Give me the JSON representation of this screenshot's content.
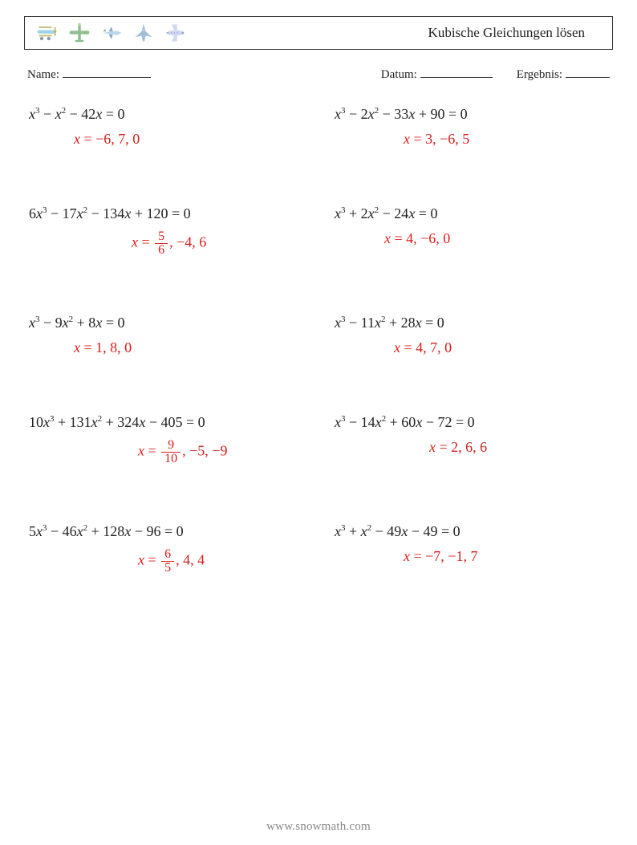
{
  "header": {
    "title": "Kubische Gleichungen lösen",
    "icon_colors": {
      "plane1_body": "#9fd3e8",
      "plane1_prop": "#bdb76b",
      "plane2_body": "#8fbf8f",
      "plane2_nose": "#b0d898",
      "plane3_body": "#b8d8e8",
      "plane3_nose": "#88aacc",
      "plane4_body": "#9fbfd8",
      "plane4_wing": "#c8d8e8",
      "plane5_body": "#d0d8f0",
      "plane5_line": "#90a0d0"
    }
  },
  "meta": {
    "name_label": "Name:",
    "date_label": "Datum:",
    "result_label": "Ergebnis:"
  },
  "colors": {
    "equation": "#222222",
    "answer": "#d91c1c",
    "background": "#ffffff",
    "border": "#333333",
    "footer": "#9a9a9a"
  },
  "typography": {
    "eq_fontsize": 18,
    "title_fontsize": 17,
    "answer_fontsize": 18,
    "sup_fontsize": 11
  },
  "problems": [
    {
      "equation_html": "<span class='var'>x</span><sup>3</sup> − <span class='var'>x</span><sup>2</sup> − 42<span class='var'>x</span> = 0",
      "answer_html": "<span class='x'>x</span> = −6, 7, 0",
      "answer_pad": 56
    },
    {
      "equation_html": "<span class='var'>x</span><sup>3</sup> − 2<span class='var'>x</span><sup>2</sup> − 33<span class='var'>x</span> + 90 = 0",
      "answer_html": "<span class='x'>x</span> = 3, −6, 5",
      "answer_pad": 86
    },
    {
      "equation_html": "6<span class='var'>x</span><sup>3</sup> − 17<span class='var'>x</span><sup>2</sup> − 134<span class='var'>x</span> + 120 = 0",
      "answer_html": "<span class='x'>x</span> = <span class='frac'><span class='num'>5</span><span class='den'>6</span></span>, −4, 6",
      "answer_pad": 128
    },
    {
      "equation_html": "<span class='var'>x</span><sup>3</sup> + 2<span class='var'>x</span><sup>2</sup> − 24<span class='var'>x</span> = 0",
      "answer_html": "<span class='x'>x</span> = 4, −6, 0",
      "answer_pad": 62
    },
    {
      "equation_html": "<span class='var'>x</span><sup>3</sup> − 9<span class='var'>x</span><sup>2</sup> + 8<span class='var'>x</span> = 0",
      "answer_html": "<span class='x'>x</span> = 1, 8, 0",
      "answer_pad": 56
    },
    {
      "equation_html": "<span class='var'>x</span><sup>3</sup> − 11<span class='var'>x</span><sup>2</sup> + 28<span class='var'>x</span> = 0",
      "answer_html": "<span class='x'>x</span> = 4, 7, 0",
      "answer_pad": 74
    },
    {
      "equation_html": "10<span class='var'>x</span><sup>3</sup> + 131<span class='var'>x</span><sup>2</sup> + 324<span class='var'>x</span> − 405 = 0",
      "answer_html": "<span class='x'>x</span> = <span class='frac'><span class='num'>9</span><span class='den'>10</span></span>, −5, −9",
      "answer_pad": 136
    },
    {
      "equation_html": "<span class='var'>x</span><sup>3</sup> − 14<span class='var'>x</span><sup>2</sup> + 60<span class='var'>x</span> − 72 = 0",
      "answer_html": "<span class='x'>x</span> = 2, 6, 6",
      "answer_pad": 118
    },
    {
      "equation_html": "5<span class='var'>x</span><sup>3</sup> − 46<span class='var'>x</span><sup>2</sup> + 128<span class='var'>x</span> − 96 = 0",
      "answer_html": "<span class='x'>x</span> = <span class='frac'><span class='num'>6</span><span class='den'>5</span></span>, 4, 4",
      "answer_pad": 136
    },
    {
      "equation_html": "<span class='var'>x</span><sup>3</sup> + <span class='var'>x</span><sup>2</sup> − 49<span class='var'>x</span> − 49 = 0",
      "answer_html": "<span class='x'>x</span> = −7, −1, 7",
      "answer_pad": 86
    }
  ],
  "footer": {
    "text": "www.snowmath.com"
  }
}
